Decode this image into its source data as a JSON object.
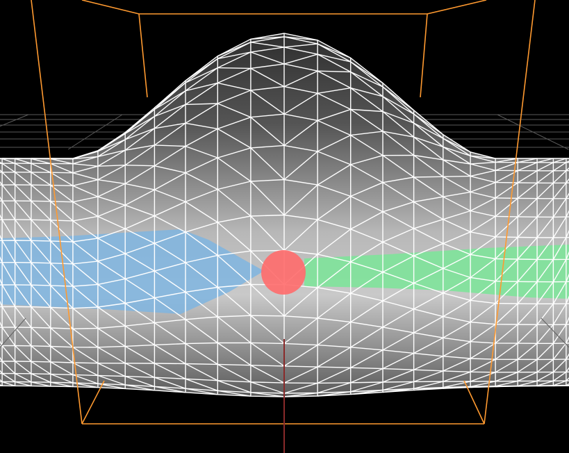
{
  "viewport": {
    "background": "#000000",
    "grid_color": "#6a6a6a",
    "mesh_wire_color": "#ffffff",
    "mesh_fill_light": "#c8c8c8",
    "mesh_fill_dark": "#3c3c3c",
    "bounding_box_color": "#ff9a30",
    "axis_color": "#8a2a2a",
    "blue_region_color": "#7fb5e0",
    "green_region_color": "#7ee39a",
    "marker_color": "#ff6b6b"
  }
}
